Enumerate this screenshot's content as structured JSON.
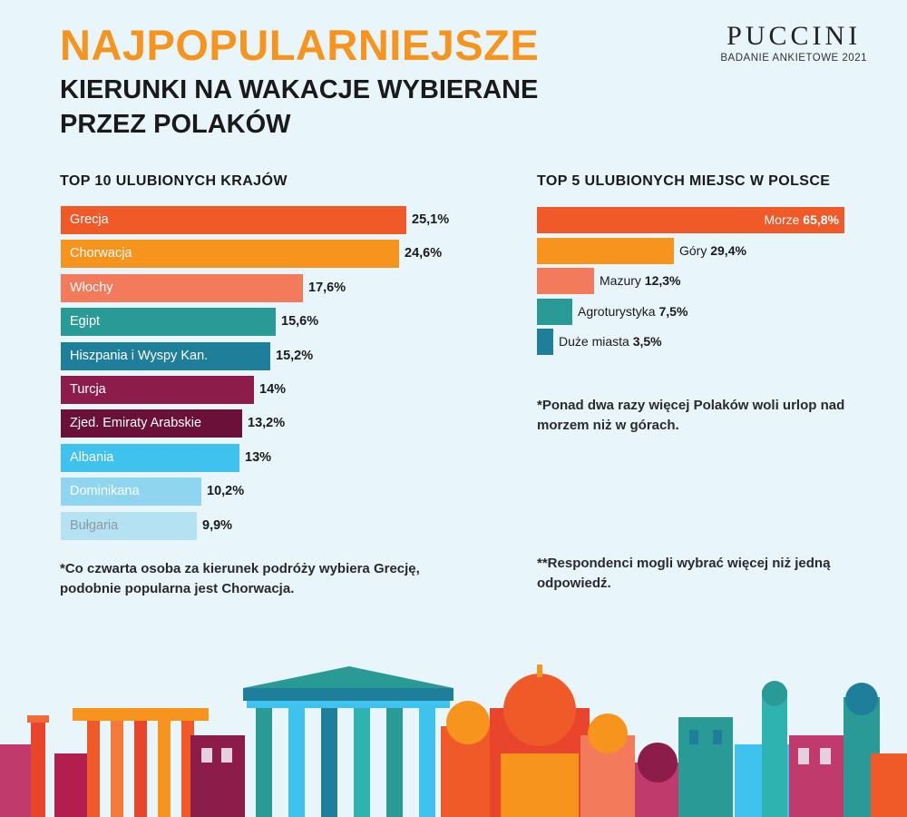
{
  "header": {
    "title": "NAJPOPULARNIEJSZE",
    "subtitle": "KIERUNKI NA WAKACJE WYBIERANE PRZEZ POLAKÓW"
  },
  "brand": {
    "name": "PUCCINI",
    "subtitle": "BADANIE ANKIETOWE 2021"
  },
  "notes": {
    "left": "*Co czwarta osoba za kierunek podróży wybiera Grecję, podobnie popularna jest Chorwacja.",
    "right_1": "*Ponad dwa razy więcej Polaków woli urlop nad morzem niż w górach.",
    "right_2": "**Respondenci mogli wybrać więcej niż jedną odpowiedź."
  },
  "chart_data": [
    {
      "type": "bar",
      "orientation": "horizontal",
      "title": "TOP 10 ULUBIONYCH KRAJÓW",
      "categories": [
        "Grecja",
        "Chorwacja",
        "Włochy",
        "Egipt",
        "Hiszpania i Wyspy Kan.",
        "Turcja",
        "Zjed. Emiraty Arabskie",
        "Albania",
        "Dominikana",
        "Bułgaria"
      ],
      "values": [
        25.1,
        24.6,
        17.6,
        15.6,
        15.2,
        14,
        13.2,
        13,
        10.2,
        9.9
      ],
      "value_labels": [
        "25,1%",
        "24,6%",
        "17,6%",
        "15,6%",
        "15,2%",
        "14%",
        "13,2%",
        "13%",
        "10,2%",
        "9,9%"
      ],
      "colors": [
        "#f05a28",
        "#f7941d",
        "#f47a5c",
        "#2a9a96",
        "#1f7f9a",
        "#8c1c4a",
        "#6b1039",
        "#40c2ee",
        "#8fd5f0",
        "#b5e2f2"
      ],
      "label_colors": [
        "#ffffff",
        "#ffffff",
        "#ffffff",
        "#ffffff",
        "#ffffff",
        "#ffffff",
        "#ffffff",
        "#ffffff",
        "#ffffff",
        "#8a9aa3"
      ],
      "unit": "%",
      "grid": false
    },
    {
      "type": "bar",
      "orientation": "horizontal",
      "title": "TOP 5 ULUBIONYCH MIEJSC W POLSCE",
      "categories": [
        "Morze",
        "Góry",
        "Mazury",
        "Agroturystyka",
        "Duże miasta"
      ],
      "values": [
        65.8,
        29.4,
        12.3,
        7.5,
        3.5
      ],
      "value_labels": [
        "65,8%",
        "29,4%",
        "12,3%",
        "7,5%",
        "3,5%"
      ],
      "colors": [
        "#f05a28",
        "#f7941d",
        "#f47a5c",
        "#2a9a96",
        "#1f7f9a"
      ],
      "unit": "%",
      "grid": false
    }
  ]
}
